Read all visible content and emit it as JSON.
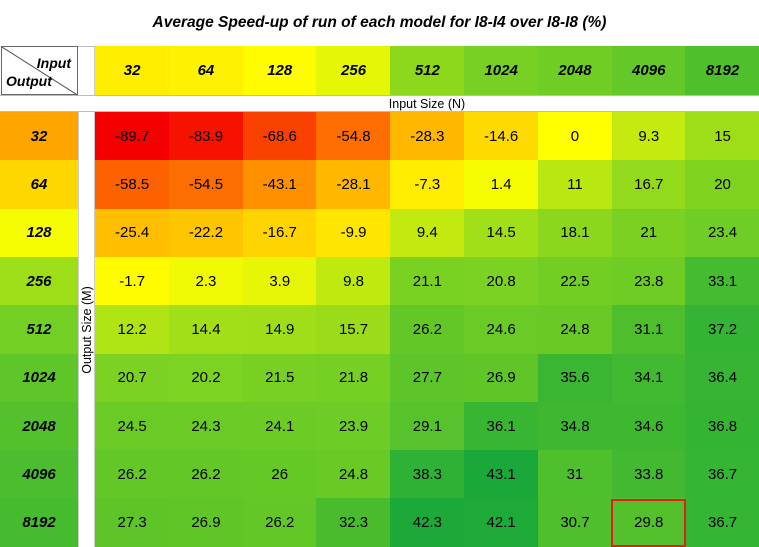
{
  "title": "Average Speed-up of run of each model for I8-I4 over I8-I8 (%)",
  "corner": {
    "input_label": "Input",
    "output_label": "Output"
  },
  "chart_data": {
    "type": "heatmap",
    "title": "Average Speed-up of run of each model for I8-I4 over I8-I8 (%)",
    "xlabel": "Input Size (N)",
    "ylabel": "Output Size (M)",
    "x_categories": [
      "32",
      "64",
      "128",
      "256",
      "512",
      "1024",
      "2048",
      "4096",
      "8192"
    ],
    "y_categories": [
      "32",
      "64",
      "128",
      "256",
      "512",
      "1024",
      "2048",
      "4096",
      "8192"
    ],
    "values": [
      [
        -89.7,
        -83.9,
        -68.6,
        -54.8,
        -28.3,
        -14.6,
        0,
        9.3,
        15
      ],
      [
        -58.5,
        -54.5,
        -43.1,
        -28.1,
        -7.3,
        1.4,
        11,
        16.7,
        20
      ],
      [
        -25.4,
        -22.2,
        -16.7,
        -9.9,
        9.4,
        14.5,
        18.1,
        21,
        23.4
      ],
      [
        -1.7,
        2.3,
        3.9,
        9.8,
        21.1,
        20.8,
        22.5,
        23.8,
        33.1
      ],
      [
        12.2,
        14.4,
        14.9,
        15.7,
        26.2,
        24.6,
        24.8,
        31.1,
        37.2
      ],
      [
        20.7,
        20.2,
        21.5,
        21.8,
        27.7,
        26.9,
        35.6,
        34.1,
        36.4
      ],
      [
        24.5,
        24.3,
        24.1,
        23.9,
        29.1,
        36.1,
        34.8,
        34.6,
        36.8
      ],
      [
        26.2,
        26.2,
        26,
        24.8,
        38.3,
        43.1,
        31,
        33.8,
        36.7
      ],
      [
        27.3,
        26.9,
        26.2,
        32.3,
        42.3,
        42.1,
        30.7,
        29.8,
        36.7
      ]
    ],
    "highlighted_cell": {
      "row": "8192",
      "col": "4096",
      "value": 29.8
    },
    "highlight_color": "#e02020",
    "color_scale": [
      "#f50000",
      "#ff8c00",
      "#ffff00",
      "#7ed321",
      "#1aa83a"
    ],
    "color_range": [
      -89.7,
      43.1
    ]
  }
}
